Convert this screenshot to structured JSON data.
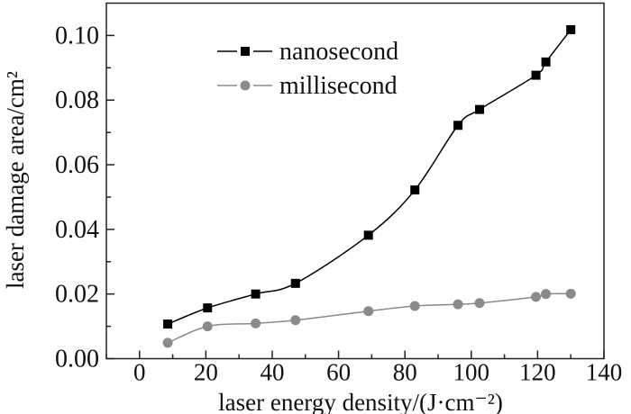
{
  "chart_data": {
    "type": "line",
    "title": "",
    "xlabel": "laser energy density/(J·cm⁻²)",
    "ylabel": "laser damage area/cm²",
    "xlim": [
      -10,
      140
    ],
    "ylim": [
      0,
      0.11
    ],
    "xticks": [
      0,
      20,
      40,
      60,
      80,
      100,
      120,
      140
    ],
    "xtick_labels": [
      "0",
      "20",
      "40",
      "60",
      "80",
      "100",
      "120",
      "140"
    ],
    "yticks": [
      0,
      0.02,
      0.04,
      0.06,
      0.08,
      0.1
    ],
    "ytick_labels": [
      "0.00",
      "0.02",
      "0.04",
      "0.06",
      "0.08",
      "0.10"
    ],
    "grid": false,
    "legend_position": "top-left",
    "series": [
      {
        "name": "nanosecond",
        "color": "#000000",
        "marker": "square",
        "x": [
          8.5,
          20.5,
          35,
          47,
          69,
          83,
          96,
          102.5,
          119.5,
          122.5,
          130
        ],
        "y": [
          0.0107,
          0.0157,
          0.02,
          0.0233,
          0.0382,
          0.0522,
          0.0722,
          0.0771,
          0.0877,
          0.0918,
          0.1018
        ]
      },
      {
        "name": "millisecond",
        "color": "#8a8a8a",
        "marker": "circle",
        "x": [
          8.5,
          20.5,
          35,
          47,
          69,
          83,
          96,
          102.5,
          119.5,
          122.5,
          130
        ],
        "y": [
          0.0049,
          0.01,
          0.0109,
          0.0119,
          0.0147,
          0.0163,
          0.0168,
          0.0172,
          0.0191,
          0.02,
          0.0201
        ]
      }
    ]
  }
}
